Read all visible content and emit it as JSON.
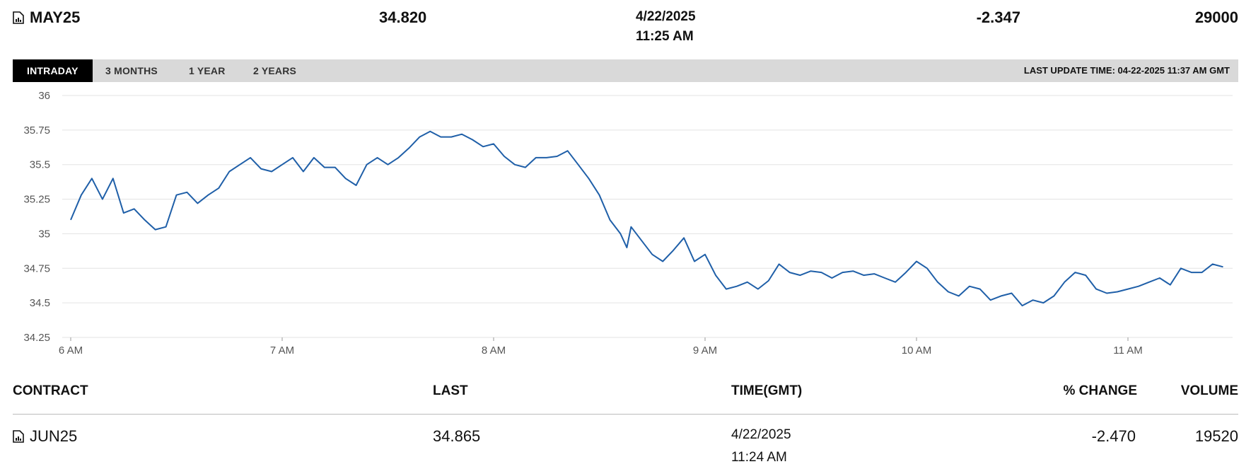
{
  "header": {
    "contract": "MAY25",
    "last": "34.820",
    "date": "4/22/2025",
    "time": "11:25 AM",
    "change": "-2.347",
    "volume": "29000"
  },
  "tabs": [
    {
      "label": "INTRADAY",
      "active": true
    },
    {
      "label": "3 MONTHS",
      "active": false
    },
    {
      "label": "1 YEAR",
      "active": false
    },
    {
      "label": "2 YEARS",
      "active": false
    }
  ],
  "last_update": "LAST UPDATE TIME: 04-22-2025 11:37 AM GMT",
  "table": {
    "columns": [
      "CONTRACT",
      "LAST",
      "TIME(GMT)",
      "% CHANGE",
      "VOLUME"
    ],
    "rows": [
      {
        "contract": "JUN25",
        "last": "34.865",
        "date": "4/22/2025",
        "time": "11:24 AM",
        "change": "-2.470",
        "volume": "19520"
      }
    ]
  },
  "colors": {
    "line": "#1f5fa8",
    "grid": "#e3e3e3",
    "tabbar": "#d9d9d9",
    "active_tab": "#000000"
  },
  "chart_data": {
    "type": "line",
    "title": "",
    "xlabel": "",
    "ylabel": "",
    "ylim": [
      34.25,
      36
    ],
    "yticks": [
      "36",
      "35.75",
      "35.5",
      "35.25",
      "35",
      "34.75",
      "34.5",
      "34.25"
    ],
    "xticks": [
      "6 AM",
      "7 AM",
      "8 AM",
      "9 AM",
      "10 AM",
      "11 AM"
    ],
    "grid": true,
    "x_unit": "hours",
    "series": [
      {
        "values_x": [
          6.0,
          6.05,
          6.1,
          6.15,
          6.2,
          6.25,
          6.3,
          6.35,
          6.4,
          6.45,
          6.5,
          6.55,
          6.6,
          6.65,
          6.7,
          6.75,
          6.8,
          6.85,
          6.9,
          6.95,
          7.0,
          7.05,
          7.1,
          7.15,
          7.2,
          7.25,
          7.3,
          7.35,
          7.4,
          7.45,
          7.5,
          7.55,
          7.6,
          7.65,
          7.7,
          7.75,
          7.8,
          7.85,
          7.9,
          7.95,
          8.0,
          8.05,
          8.1,
          8.15,
          8.2,
          8.25,
          8.3,
          8.35,
          8.4,
          8.45,
          8.5,
          8.55,
          8.6,
          8.63,
          8.65,
          8.7,
          8.75,
          8.8,
          8.85,
          8.9,
          8.95,
          9.0,
          9.05,
          9.1,
          9.15,
          9.2,
          9.25,
          9.3,
          9.35,
          9.4,
          9.45,
          9.5,
          9.55,
          9.6,
          9.65,
          9.7,
          9.75,
          9.8,
          9.85,
          9.9,
          9.95,
          10.0,
          10.05,
          10.1,
          10.15,
          10.2,
          10.25,
          10.3,
          10.35,
          10.4,
          10.45,
          10.5,
          10.55,
          10.6,
          10.65,
          10.7,
          10.75,
          10.8,
          10.85,
          10.9,
          10.95,
          11.0,
          11.05,
          11.1,
          11.15,
          11.2,
          11.25,
          11.3,
          11.35,
          11.4,
          11.45
        ],
        "values_y": [
          35.1,
          35.28,
          35.4,
          35.25,
          35.4,
          35.15,
          35.18,
          35.1,
          35.03,
          35.05,
          35.28,
          35.3,
          35.22,
          35.28,
          35.33,
          35.45,
          35.5,
          35.55,
          35.47,
          35.45,
          35.5,
          35.55,
          35.45,
          35.55,
          35.48,
          35.48,
          35.4,
          35.35,
          35.5,
          35.55,
          35.5,
          35.55,
          35.62,
          35.7,
          35.74,
          35.7,
          35.7,
          35.72,
          35.68,
          35.63,
          35.65,
          35.56,
          35.5,
          35.48,
          35.55,
          35.55,
          35.56,
          35.6,
          35.5,
          35.4,
          35.28,
          35.1,
          35.0,
          34.9,
          35.05,
          34.95,
          34.85,
          34.8,
          34.88,
          34.97,
          34.8,
          34.85,
          34.7,
          34.6,
          34.62,
          34.65,
          34.6,
          34.66,
          34.78,
          34.72,
          34.7,
          34.73,
          34.72,
          34.68,
          34.72,
          34.73,
          34.7,
          34.71,
          34.68,
          34.65,
          34.72,
          34.8,
          34.75,
          34.65,
          34.58,
          34.55,
          34.62,
          34.6,
          34.52,
          34.55,
          34.57,
          34.48,
          34.52,
          34.5,
          34.55,
          34.65,
          34.72,
          34.7,
          34.6,
          34.57,
          34.58,
          34.6,
          34.62,
          34.65,
          34.68,
          34.63,
          34.75,
          34.72,
          34.72,
          34.78,
          34.76
        ]
      }
    ]
  }
}
